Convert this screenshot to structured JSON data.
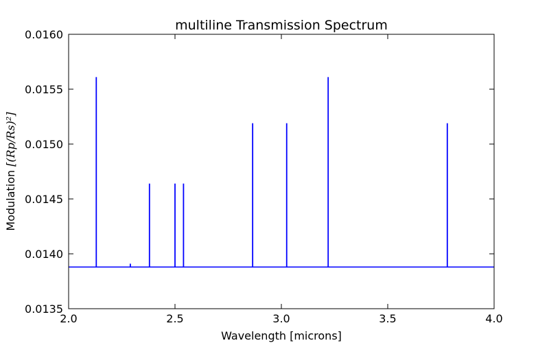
{
  "chart_data": {
    "type": "line",
    "title": "multiline Transmission Spectrum",
    "xlabel": "Wavelength  [microns]",
    "ylabel": {
      "text": "Modulation  ",
      "math": "[(Rp/Rs)²]"
    },
    "xlim": [
      2.0,
      4.0
    ],
    "ylim": [
      0.0135,
      0.016
    ],
    "x_ticks": [
      2.0,
      2.5,
      3.0,
      3.5,
      4.0
    ],
    "x_tick_labels": [
      "2.0",
      "2.5",
      "3.0",
      "3.5",
      "4.0"
    ],
    "y_ticks": [
      0.0135,
      0.014,
      0.0145,
      0.015,
      0.0155,
      0.016
    ],
    "y_tick_labels": [
      "0.0135",
      "0.0140",
      "0.0145",
      "0.0150",
      "0.0155",
      "0.0160"
    ],
    "grid": false,
    "legend": "none",
    "line_color": "#0000ff",
    "series": [
      {
        "baseline": 0.01388,
        "lines": [
          {
            "x": 2.13,
            "y": 0.01561
          },
          {
            "x": 2.29,
            "y": 0.01391
          },
          {
            "x": 2.38,
            "y": 0.01464
          },
          {
            "x": 2.5,
            "y": 0.01464
          },
          {
            "x": 2.54,
            "y": 0.01464
          },
          {
            "x": 2.865,
            "y": 0.01519
          },
          {
            "x": 3.025,
            "y": 0.01519
          },
          {
            "x": 3.22,
            "y": 0.01561
          },
          {
            "x": 3.78,
            "y": 0.01519
          }
        ]
      }
    ]
  }
}
